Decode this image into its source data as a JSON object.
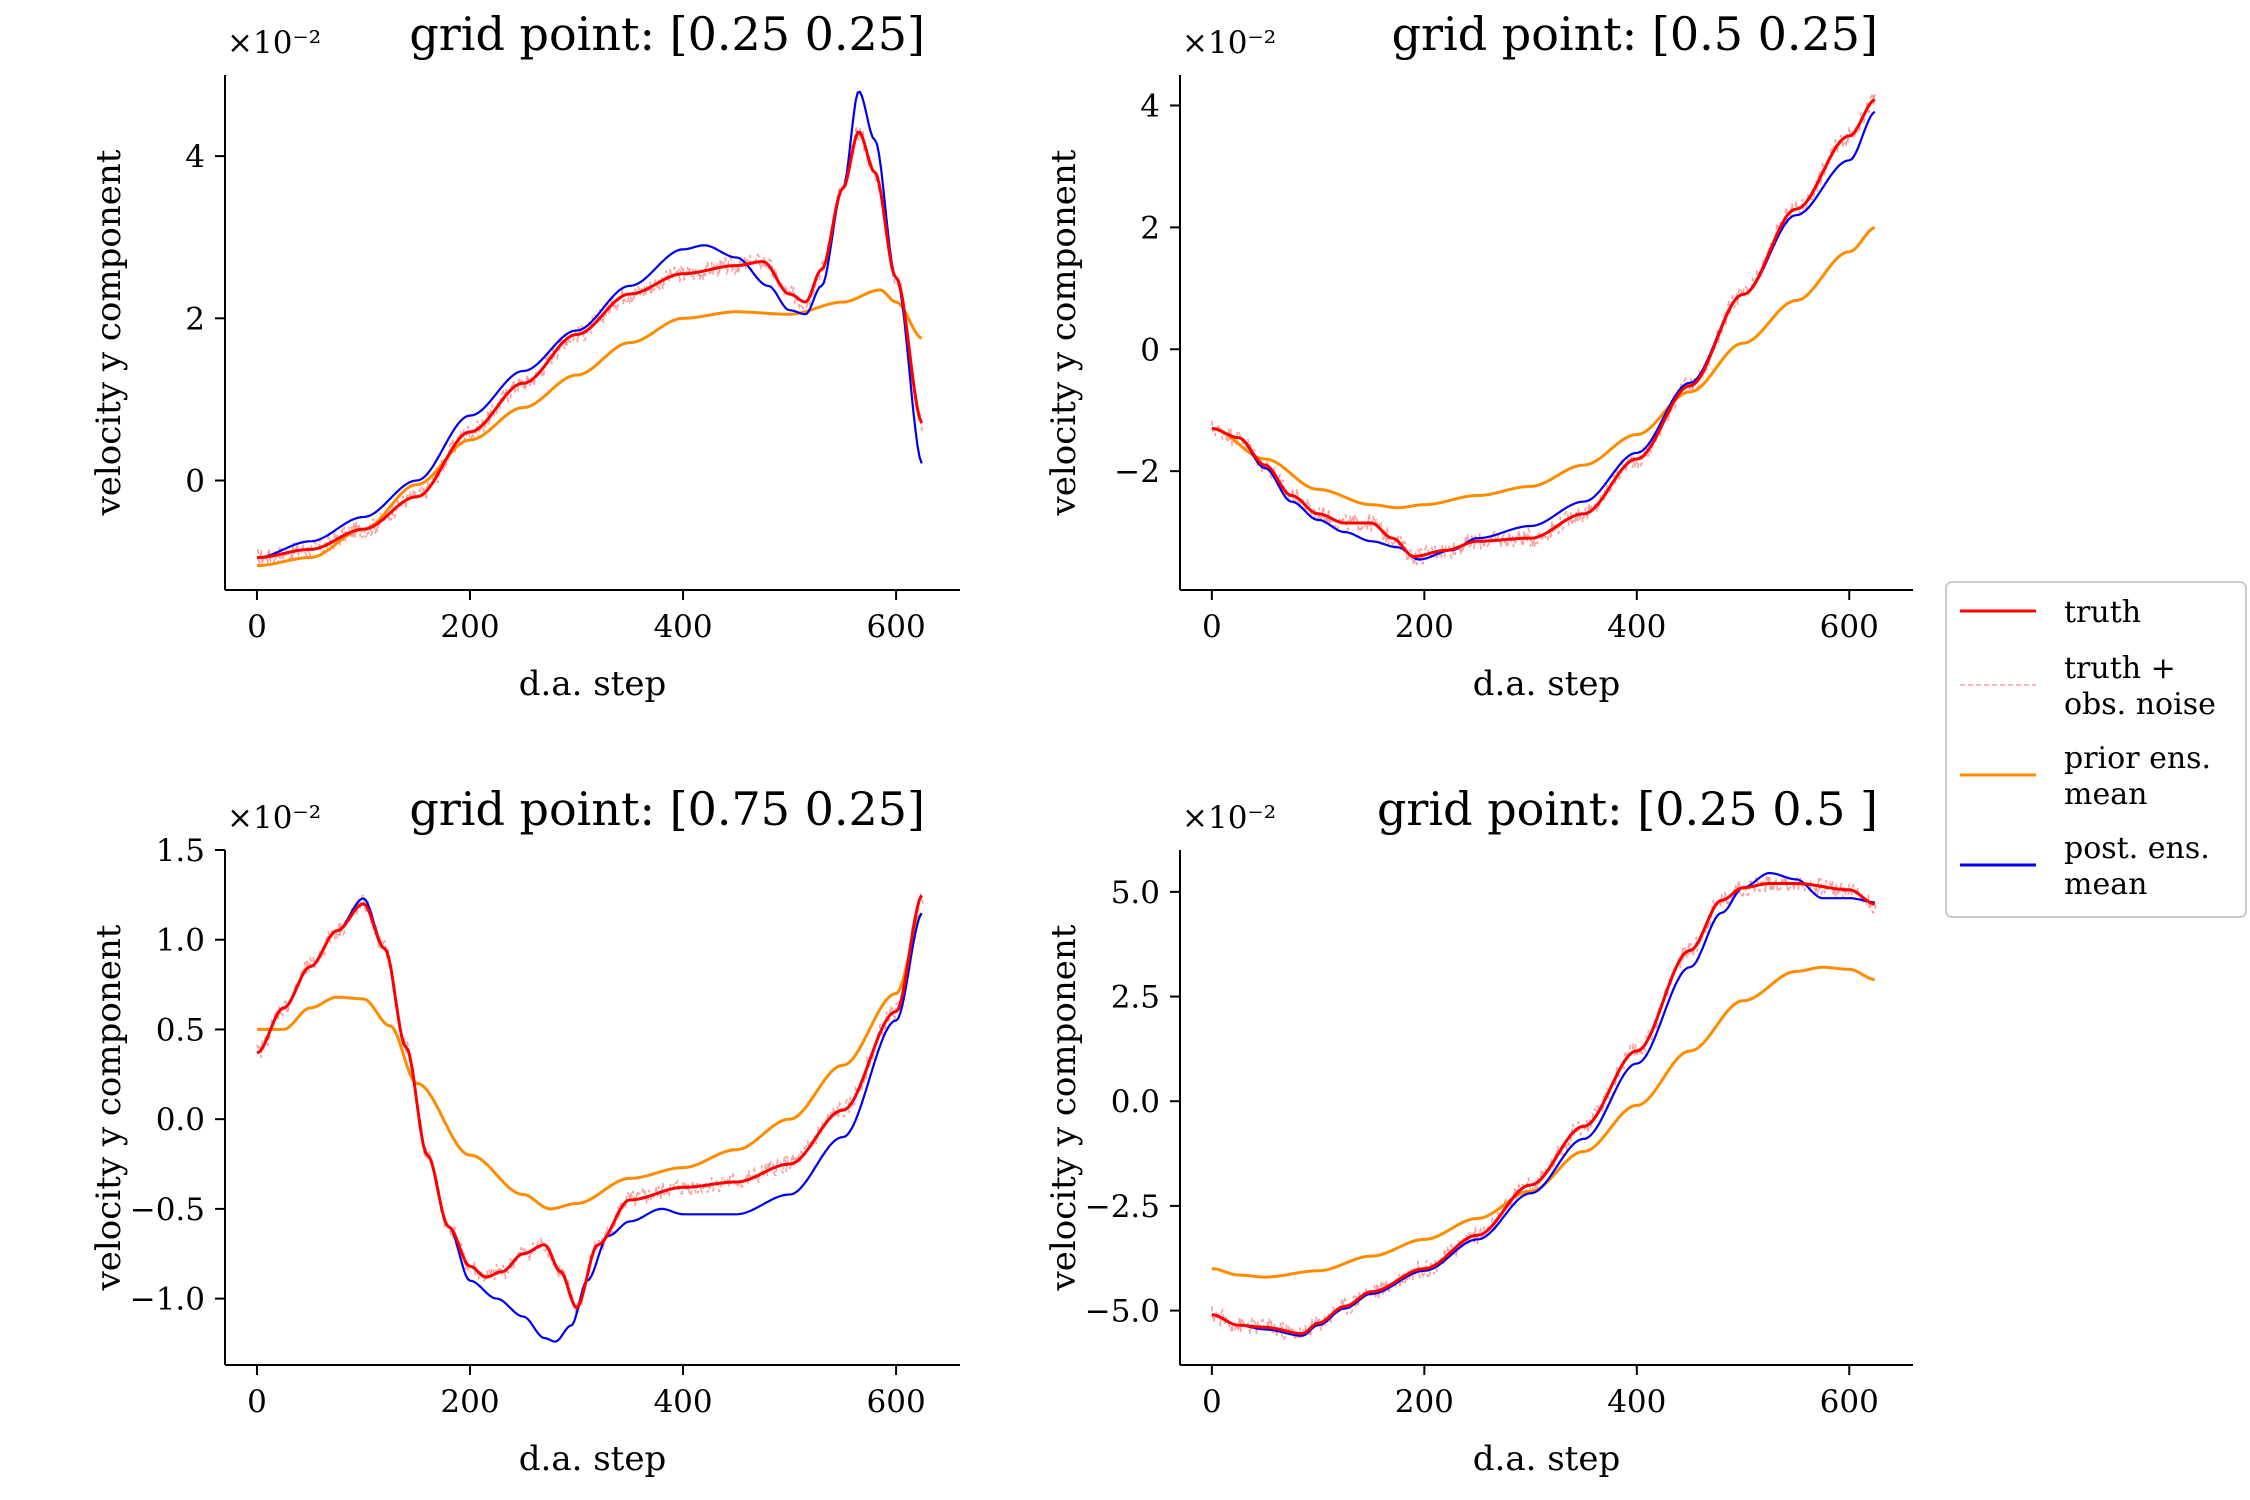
{
  "chart_data": [
    {
      "type": "line",
      "title": "grid point: [0.25 0.25]",
      "xlabel": "d.a. step",
      "ylabel": "velocity y component",
      "scale_label": "×10⁻²",
      "xlim": [
        -30,
        660
      ],
      "ylim": [
        -1.35,
        5.0
      ],
      "xticks": [
        0,
        200,
        400,
        600
      ],
      "yticks": [
        0,
        2,
        4
      ],
      "series": [
        {
          "name": "truth",
          "x": [
            0,
            50,
            100,
            150,
            200,
            250,
            300,
            350,
            400,
            450,
            475,
            500,
            515,
            530,
            550,
            565,
            580,
            600,
            625
          ],
          "y": [
            -0.95,
            -0.85,
            -0.6,
            -0.2,
            0.6,
            1.2,
            1.8,
            2.3,
            2.55,
            2.65,
            2.7,
            2.3,
            2.2,
            2.6,
            3.6,
            4.3,
            3.8,
            2.5,
            0.7
          ]
        },
        {
          "name": "prior ens. mean",
          "x": [
            0,
            50,
            100,
            150,
            200,
            250,
            300,
            350,
            400,
            450,
            500,
            550,
            585,
            600,
            625
          ],
          "y": [
            -1.05,
            -0.95,
            -0.6,
            -0.05,
            0.5,
            0.9,
            1.3,
            1.7,
            2.0,
            2.08,
            2.05,
            2.2,
            2.35,
            2.2,
            1.75
          ]
        },
        {
          "name": "post. ens. mean",
          "x": [
            0,
            50,
            100,
            150,
            200,
            250,
            300,
            350,
            400,
            420,
            450,
            480,
            500,
            515,
            530,
            550,
            565,
            580,
            600,
            625
          ],
          "y": [
            -0.95,
            -0.75,
            -0.45,
            0.0,
            0.8,
            1.35,
            1.85,
            2.4,
            2.85,
            2.9,
            2.75,
            2.4,
            2.1,
            2.05,
            2.4,
            3.6,
            4.8,
            4.2,
            2.5,
            0.2
          ]
        }
      ]
    },
    {
      "type": "line",
      "title": "grid point: [0.5 0.25]",
      "xlabel": "d.a. step",
      "ylabel": "velocity y component",
      "scale_label": "×10⁻²",
      "xlim": [
        -30,
        660
      ],
      "ylim": [
        -3.95,
        4.5
      ],
      "xticks": [
        0,
        200,
        400,
        600
      ],
      "yticks": [
        -2,
        0,
        2,
        4
      ],
      "series": [
        {
          "name": "truth",
          "x": [
            0,
            25,
            50,
            75,
            100,
            125,
            150,
            170,
            190,
            220,
            250,
            300,
            350,
            400,
            450,
            500,
            550,
            600,
            625
          ],
          "y": [
            -1.3,
            -1.45,
            -1.9,
            -2.4,
            -2.7,
            -2.85,
            -2.85,
            -3.1,
            -3.4,
            -3.3,
            -3.15,
            -3.1,
            -2.7,
            -1.8,
            -0.6,
            0.9,
            2.3,
            3.5,
            4.1
          ]
        },
        {
          "name": "prior ens. mean",
          "x": [
            0,
            50,
            100,
            150,
            175,
            200,
            250,
            300,
            350,
            400,
            450,
            500,
            550,
            600,
            625
          ],
          "y": [
            -1.3,
            -1.8,
            -2.3,
            -2.55,
            -2.6,
            -2.55,
            -2.4,
            -2.25,
            -1.9,
            -1.4,
            -0.7,
            0.1,
            0.8,
            1.6,
            2.0
          ]
        },
        {
          "name": "post. ens. mean",
          "x": [
            0,
            25,
            50,
            75,
            100,
            125,
            150,
            175,
            195,
            225,
            250,
            300,
            350,
            400,
            450,
            500,
            550,
            600,
            625
          ],
          "y": [
            -1.3,
            -1.45,
            -1.95,
            -2.5,
            -2.8,
            -3.0,
            -3.15,
            -3.25,
            -3.45,
            -3.3,
            -3.1,
            -2.9,
            -2.5,
            -1.7,
            -0.55,
            0.9,
            2.2,
            3.1,
            3.9
          ]
        }
      ]
    },
    {
      "type": "line",
      "title": "grid point: [0.75 0.25]",
      "xlabel": "d.a. step",
      "ylabel": "velocity y component",
      "scale_label": "×10⁻²",
      "xlim": [
        -30,
        660
      ],
      "ylim": [
        -1.37,
        1.5
      ],
      "xticks": [
        0,
        200,
        400,
        600
      ],
      "yticks": [
        -1.0,
        -0.5,
        0.0,
        0.5,
        1.0,
        1.5
      ],
      "series": [
        {
          "name": "truth",
          "x": [
            0,
            25,
            50,
            75,
            100,
            120,
            140,
            160,
            180,
            200,
            215,
            230,
            250,
            270,
            285,
            300,
            320,
            350,
            400,
            450,
            500,
            550,
            600,
            625
          ],
          "y": [
            0.37,
            0.62,
            0.85,
            1.05,
            1.2,
            0.95,
            0.4,
            -0.2,
            -0.6,
            -0.82,
            -0.88,
            -0.85,
            -0.75,
            -0.7,
            -0.85,
            -1.05,
            -0.7,
            -0.45,
            -0.38,
            -0.35,
            -0.25,
            0.05,
            0.6,
            1.25
          ]
        },
        {
          "name": "prior ens. mean",
          "x": [
            0,
            25,
            50,
            75,
            100,
            125,
            150,
            200,
            250,
            275,
            300,
            350,
            400,
            450,
            500,
            550,
            600,
            625
          ],
          "y": [
            0.5,
            0.5,
            0.62,
            0.68,
            0.67,
            0.52,
            0.2,
            -0.2,
            -0.42,
            -0.5,
            -0.47,
            -0.33,
            -0.27,
            -0.17,
            0.0,
            0.3,
            0.7,
            1.15
          ]
        },
        {
          "name": "post. ens. mean",
          "x": [
            0,
            25,
            50,
            75,
            100,
            120,
            140,
            160,
            180,
            200,
            225,
            250,
            270,
            280,
            295,
            310,
            330,
            350,
            380,
            400,
            450,
            500,
            550,
            600,
            625
          ],
          "y": [
            0.37,
            0.62,
            0.85,
            1.05,
            1.23,
            0.95,
            0.4,
            -0.2,
            -0.6,
            -0.9,
            -1.0,
            -1.1,
            -1.22,
            -1.24,
            -1.15,
            -0.9,
            -0.65,
            -0.57,
            -0.5,
            -0.53,
            -0.53,
            -0.42,
            -0.1,
            0.55,
            1.15
          ]
        }
      ]
    },
    {
      "type": "line",
      "title": "grid point: [0.25 0.5 ]",
      "xlabel": "d.a. step",
      "ylabel": "velocity y component",
      "scale_label": "×10⁻²",
      "xlim": [
        -30,
        660
      ],
      "ylim": [
        -6.3,
        6.0
      ],
      "xticks": [
        0,
        200,
        400,
        600
      ],
      "yticks": [
        -5.0,
        -2.5,
        0.0,
        2.5,
        5.0
      ],
      "series": [
        {
          "name": "truth",
          "x": [
            0,
            25,
            50,
            85,
            100,
            125,
            150,
            200,
            250,
            300,
            350,
            400,
            450,
            480,
            500,
            525,
            550,
            600,
            625
          ],
          "y": [
            -5.1,
            -5.35,
            -5.4,
            -5.55,
            -5.3,
            -4.9,
            -4.55,
            -4.0,
            -3.2,
            -2.0,
            -0.6,
            1.2,
            3.6,
            4.8,
            5.1,
            5.2,
            5.2,
            5.05,
            4.7
          ]
        },
        {
          "name": "prior ens. mean",
          "x": [
            0,
            25,
            50,
            100,
            150,
            200,
            250,
            300,
            350,
            400,
            450,
            500,
            550,
            575,
            600,
            625
          ],
          "y": [
            -4.0,
            -4.15,
            -4.2,
            -4.05,
            -3.7,
            -3.3,
            -2.8,
            -2.15,
            -1.2,
            -0.1,
            1.2,
            2.4,
            3.1,
            3.2,
            3.15,
            2.9
          ]
        },
        {
          "name": "post. ens. mean",
          "x": [
            0,
            25,
            50,
            85,
            100,
            125,
            150,
            200,
            250,
            300,
            350,
            400,
            450,
            480,
            500,
            525,
            550,
            575,
            600,
            625
          ],
          "y": [
            -5.1,
            -5.35,
            -5.45,
            -5.6,
            -5.35,
            -4.95,
            -4.6,
            -4.05,
            -3.3,
            -2.2,
            -0.9,
            0.9,
            3.2,
            4.5,
            5.1,
            5.45,
            5.3,
            4.85,
            4.85,
            4.75
          ]
        }
      ]
    }
  ],
  "legend": {
    "position": "right",
    "items": [
      {
        "label_lines": [
          "truth"
        ],
        "color": "#ff0000",
        "style": "solid"
      },
      {
        "label_lines": [
          "truth +",
          "obs. noise"
        ],
        "color": "#f4a0a0",
        "style": "dashed"
      },
      {
        "label_lines": [
          "prior ens.",
          "mean"
        ],
        "color": "#ff8c00",
        "style": "solid"
      },
      {
        "label_lines": [
          "post. ens.",
          "mean"
        ],
        "color": "#0000ee",
        "style": "solid"
      }
    ]
  },
  "colors": {
    "truth": "#ff0000",
    "noise": "#f4a0a0",
    "prior": "#ff8c00",
    "post": "#0000ee"
  }
}
